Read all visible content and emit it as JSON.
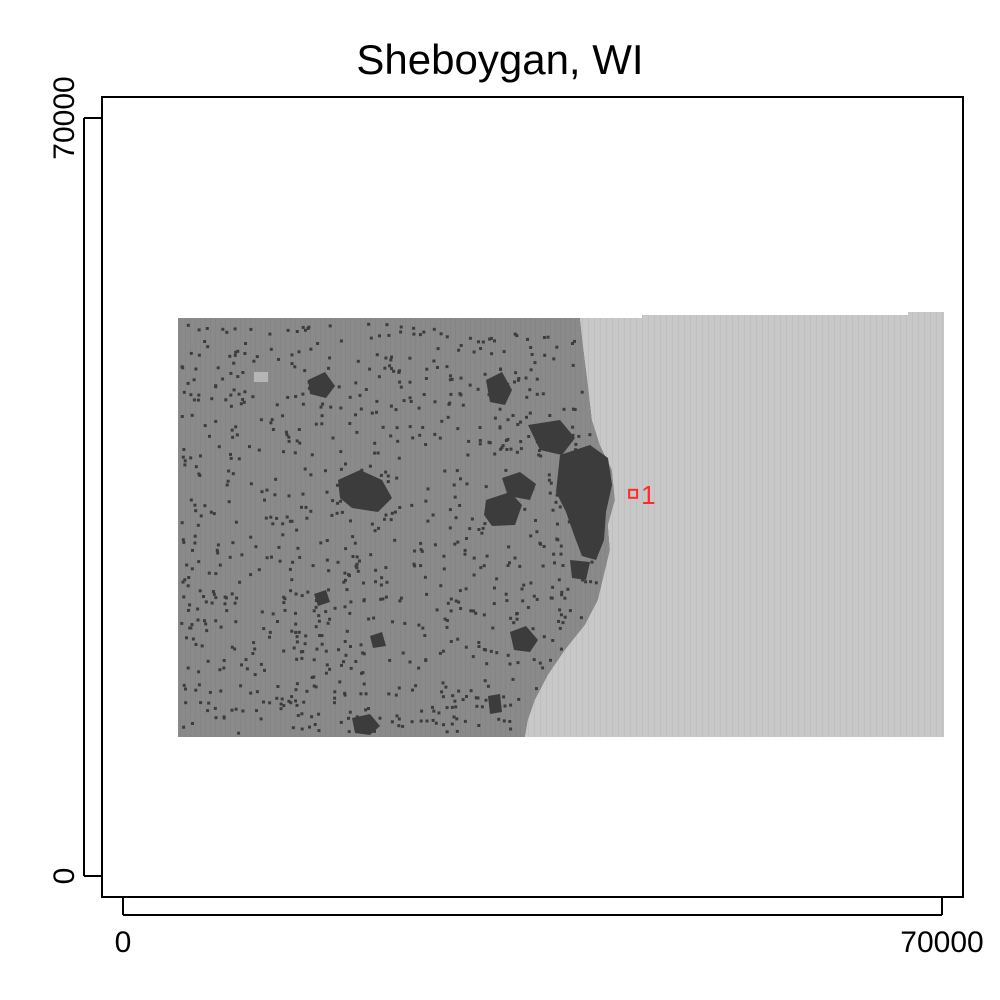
{
  "title": "Sheboygan, WI",
  "axes": {
    "x": {
      "min": 0,
      "max": 70000,
      "ticks": [
        0,
        70000
      ],
      "tick_labels": [
        "0",
        "70000"
      ]
    },
    "y": {
      "min": 0,
      "max": 70000,
      "ticks": [
        0,
        70000
      ],
      "tick_labels": [
        "0",
        "70000"
      ]
    }
  },
  "layers": {
    "land_color": "#8a8a8a",
    "urban_color": "#3c3c3c",
    "water_color": "#c8c8c8",
    "marker_color": "#ff2a2a"
  },
  "markers": [
    {
      "label": "1",
      "x": 43600,
      "y": 35300
    }
  ]
}
